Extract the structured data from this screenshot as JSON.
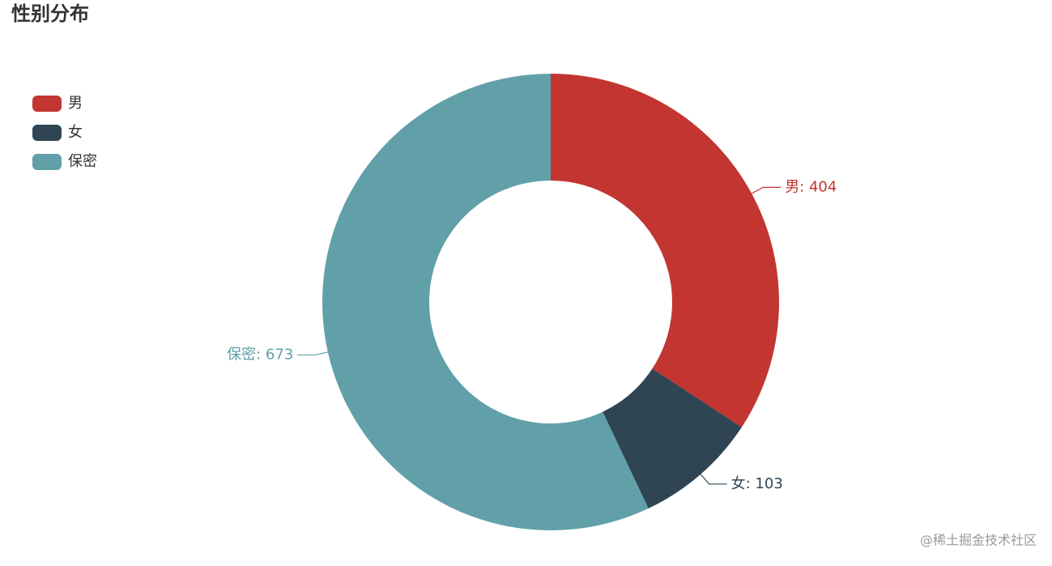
{
  "chart_data": {
    "type": "donut",
    "title": "性别分布",
    "categories": [
      "男",
      "女",
      "保密"
    ],
    "values": [
      404,
      103,
      673
    ],
    "value_labels": [
      "男: 404",
      "女: 103",
      "保密: 673"
    ],
    "colors": [
      "#c23531",
      "#2f4554",
      "#61a0a8"
    ],
    "legend": "top-left",
    "watermark": "@稀土掘金技术社区"
  }
}
